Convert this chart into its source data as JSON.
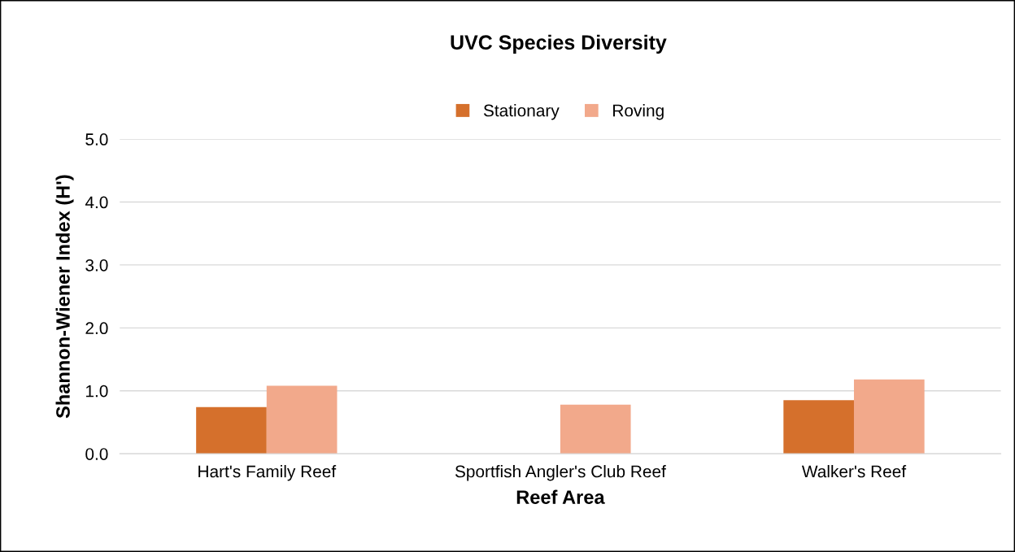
{
  "chart_data": {
    "type": "bar",
    "title": "UVC Species Diversity",
    "xlabel": "Reef Area",
    "ylabel": "Shannon-Wiener Index (H')",
    "categories": [
      "Hart's Family Reef",
      "Sportfish Angler's Club Reef",
      "Walker's Reef"
    ],
    "series": [
      {
        "name": "Stationary",
        "color": "#d5702c",
        "values": [
          0.74,
          0,
          0.85
        ]
      },
      {
        "name": "Roving",
        "color": "#f2a98b",
        "values": [
          1.08,
          0.78,
          1.18
        ]
      }
    ],
    "ylim": [
      0,
      5
    ],
    "yticks": [
      {
        "value": 0,
        "label": "0.0"
      },
      {
        "value": 1,
        "label": "1.0"
      },
      {
        "value": 2,
        "label": "2.0"
      },
      {
        "value": 3,
        "label": "3.0"
      },
      {
        "value": 4,
        "label": "4.0"
      },
      {
        "value": 5,
        "label": "5.0"
      }
    ],
    "grid": "y",
    "legend": "top"
  }
}
